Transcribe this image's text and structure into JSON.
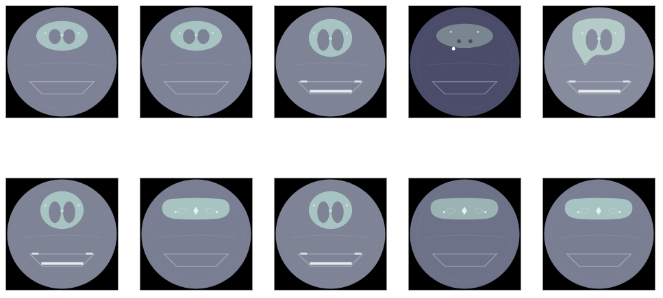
{
  "figure": {
    "rows": 2,
    "cols": 5,
    "background": "#ffffff",
    "frame_color": "#000000"
  },
  "slices": [
    {
      "kind": "upper-lungs",
      "scan_color": "#7e8296",
      "body_color": "#a8c4c2",
      "table": "plain"
    },
    {
      "kind": "upper-lungs",
      "scan_color": "#7e8296",
      "body_color": "#a8c4c2",
      "table": "plain"
    },
    {
      "kind": "mid-lungs",
      "scan_color": "#7f8396",
      "body_color": "#a8c4c2",
      "table": "bright"
    },
    {
      "kind": "dark-apex",
      "scan_color": "#4a4c6a",
      "body_color": "#79858f",
      "table": "plain"
    },
    {
      "kind": "lower-lungs",
      "scan_color": "#878b9e",
      "body_color": "#b4cbc8",
      "table": "bright"
    },
    {
      "kind": "mid-lungs",
      "scan_color": "#7f8396",
      "body_color": "#a8c4c2",
      "table": "bright"
    },
    {
      "kind": "shoulders",
      "scan_color": "#7a7e93",
      "body_color": "#a8c4c2",
      "table": "plain"
    },
    {
      "kind": "mid-lungs",
      "scan_color": "#7f8396",
      "body_color": "#a8c4c2",
      "table": "bright"
    },
    {
      "kind": "shoulders-dim",
      "scan_color": "#6e7289",
      "body_color": "#9bb3b3",
      "table": "plain"
    },
    {
      "kind": "shoulders",
      "scan_color": "#7a7e93",
      "body_color": "#a8c4c2",
      "table": "plain"
    }
  ]
}
